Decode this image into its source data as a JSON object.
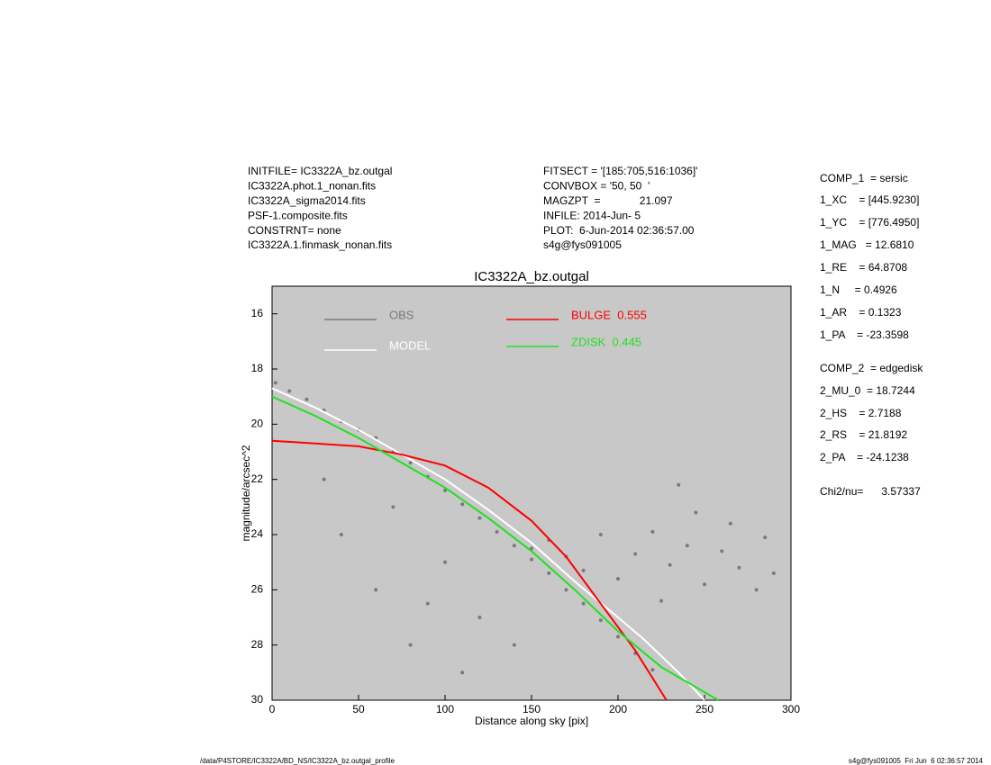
{
  "header_left": [
    "INITFILE= IC3322A_bz.outgal",
    "IC3322A.phot.1_nonan.fits",
    "IC3322A_sigma2014.fits",
    "PSF-1.composite.fits",
    "CONSTRNT= none",
    "IC3322A.1.finmask_nonan.fits"
  ],
  "header_middle": [
    "FITSECT = '[185:705,516:1036]'",
    "CONVBOX = '50, 50  '",
    "MAGZPT  =             21.097",
    "INFILE: 2014-Jun- 5",
    "PLOT:  6-Jun-2014 02:36:57.00",
    "s4g@fys091005"
  ],
  "parameters": [
    "COMP_1  = sersic",
    "1_XC    = [445.9230]",
    "1_YC    = [776.4950]",
    "1_MAG   = 12.6810",
    "1_RE    = 64.8708",
    "1_N     = 0.4926",
    "1_AR    = 0.1323",
    "1_PA    = -23.3598",
    "COMP_2  = edgedisk",
    "2_MU_0  = 18.7244",
    "2_HS    = 2.7188",
    "2_RS    = 21.8192",
    "2_PA    = -24.1238",
    "Chi2/nu=      3.57337"
  ],
  "footer_left": "/data/P4STORE/IC3322A/BD_NS/IC3322A_bz.outgal_profile",
  "footer_right": "s4g@fys091005  Fri Jun  6 02:36:57 2014",
  "chart_data": {
    "type": "scatter",
    "title": "IC3322A_bz.outgal",
    "x_label": "Distance along sky [pix]",
    "y_label": "magnitude/arcsec^2",
    "xlim": [
      0,
      300
    ],
    "ylim": [
      30,
      15
    ],
    "xticks": [
      0,
      50,
      100,
      150,
      200,
      250,
      300
    ],
    "yticks": [
      16,
      18,
      20,
      22,
      24,
      26,
      28,
      30
    ],
    "background": "#c8c8c8",
    "series": [
      {
        "name": "OBS",
        "color": "#7a7a7a",
        "mode": "points",
        "x": [
          2,
          10,
          20,
          30,
          40,
          50,
          60,
          70,
          80,
          90,
          100,
          110,
          120,
          130,
          140,
          150,
          160,
          170,
          180,
          190,
          200,
          210,
          220,
          150,
          160,
          170,
          180,
          190,
          200,
          210,
          220,
          230,
          240,
          250,
          260,
          270,
          280,
          290,
          245,
          265,
          225,
          285,
          235,
          40,
          60,
          80,
          100,
          120,
          30,
          70,
          110,
          140,
          90
        ],
        "values": [
          18.5,
          18.8,
          19.1,
          19.5,
          19.9,
          20.2,
          20.5,
          21.0,
          21.4,
          21.9,
          22.4,
          22.9,
          23.4,
          23.9,
          24.4,
          24.9,
          25.4,
          26.0,
          26.5,
          27.1,
          27.7,
          28.3,
          28.9,
          24.5,
          24.2,
          24.8,
          25.3,
          24.0,
          25.6,
          24.7,
          23.9,
          25.1,
          24.4,
          25.8,
          24.6,
          25.2,
          26.0,
          25.4,
          23.2,
          23.6,
          26.4,
          24.1,
          22.2,
          24,
          26,
          28,
          25,
          27,
          22,
          23,
          29,
          28,
          26.5
        ]
      },
      {
        "name": "MODEL",
        "color": "#ffffff",
        "mode": "line",
        "x": [
          0,
          25,
          50,
          75,
          100,
          125,
          150,
          175,
          200,
          215,
          235,
          250
        ],
        "values": [
          18.7,
          19.4,
          20.2,
          21.1,
          22.0,
          23.1,
          24.3,
          25.7,
          27.0,
          27.8,
          29.0,
          30
        ]
      },
      {
        "name": "BULGE  0.555",
        "color": "#ff0000",
        "mode": "line",
        "x": [
          0,
          25,
          50,
          75,
          100,
          125,
          150,
          170,
          190,
          210,
          228
        ],
        "values": [
          20.6,
          20.7,
          20.8,
          21.1,
          21.5,
          22.3,
          23.5,
          24.8,
          26.5,
          28.2,
          30
        ]
      },
      {
        "name": "ZDISK  0.445",
        "color": "#22e022",
        "mode": "line",
        "x": [
          0,
          25,
          50,
          75,
          100,
          125,
          150,
          175,
          200,
          225,
          258
        ],
        "values": [
          19.0,
          19.7,
          20.5,
          21.4,
          22.3,
          23.4,
          24.6,
          26.0,
          27.5,
          28.8,
          30
        ]
      }
    ]
  }
}
